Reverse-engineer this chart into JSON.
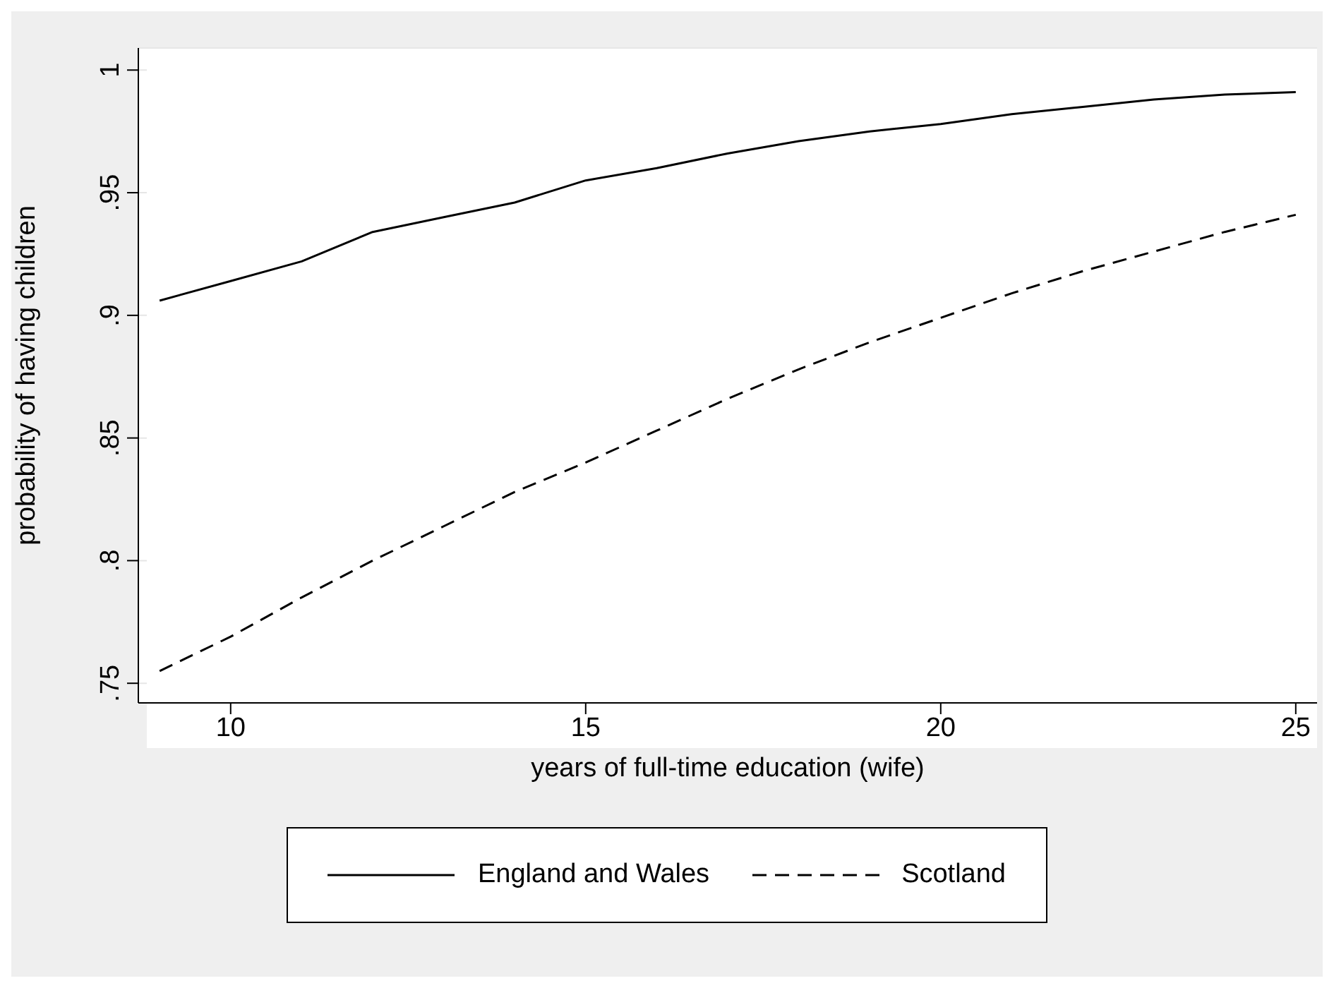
{
  "chart_data": {
    "type": "line",
    "xlabel": "years of full-time education (wife)",
    "ylabel": "probability of having children",
    "x": [
      9,
      10,
      11,
      12,
      13,
      14,
      15,
      16,
      17,
      18,
      19,
      20,
      21,
      22,
      23,
      24,
      25
    ],
    "series": [
      {
        "name": "England and Wales",
        "color": "#000000",
        "line_style": "solid",
        "values": [
          0.906,
          0.914,
          0.922,
          0.934,
          0.94,
          0.946,
          0.955,
          0.96,
          0.966,
          0.971,
          0.975,
          0.978,
          0.982,
          0.985,
          0.988,
          0.99,
          0.991
        ]
      },
      {
        "name": "Scotland",
        "color": "#000000",
        "line_style": "dashed",
        "values": [
          0.755,
          0.769,
          0.785,
          0.8,
          0.814,
          0.828,
          0.84,
          0.853,
          0.866,
          0.878,
          0.889,
          0.899,
          0.909,
          0.918,
          0.926,
          0.934,
          0.941
        ]
      }
    ],
    "xlim": [
      8.7,
      25.3
    ],
    "xticks": [
      10,
      15,
      20,
      25
    ],
    "ylim": [
      0.742,
      1.009
    ],
    "yticks": [
      {
        "value": 0.75,
        "label": ".75"
      },
      {
        "value": 0.8,
        "label": ".8"
      },
      {
        "value": 0.85,
        "label": ".85"
      },
      {
        "value": 0.9,
        "label": ".9"
      },
      {
        "value": 0.95,
        "label": ".95"
      },
      {
        "value": 1,
        "label": "1"
      }
    ],
    "grid": "y",
    "legend": "bottom",
    "marker": "none"
  }
}
